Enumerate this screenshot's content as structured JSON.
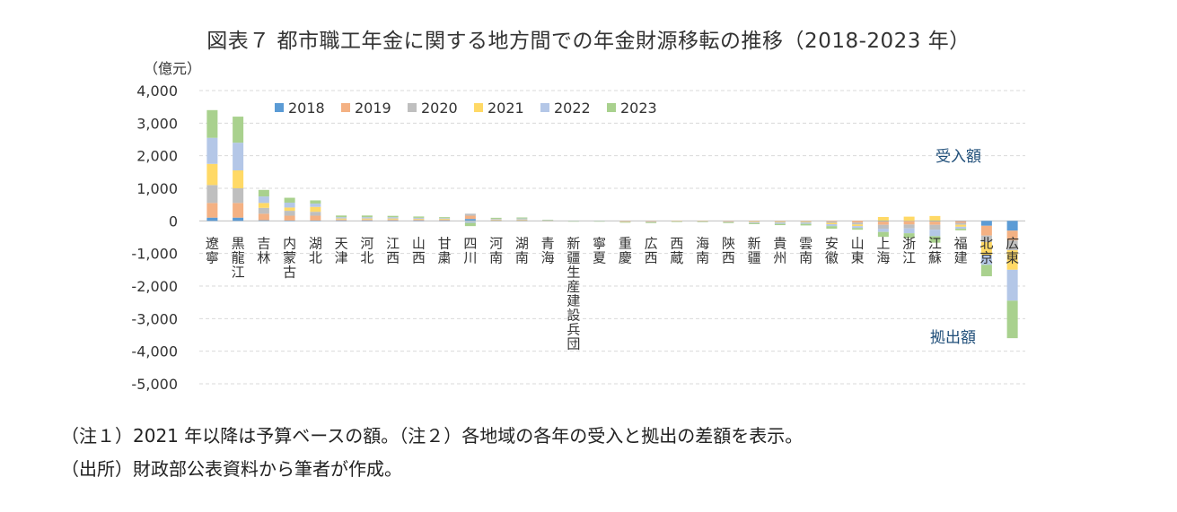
{
  "title": "図表７ 都市職工年金に関する地方間での年金財源移転の推移（2018‐2023 年）",
  "notes": {
    "line1": "（注１）2021 年以降は予算ベースの額。（注２）各地域の各年の受入と拠出の差額を表示。",
    "line2": "（出所）財政部公表資料から筆者が作成。"
  },
  "chart_data": {
    "type": "bar",
    "stacked": true,
    "unit_label": "（億元）",
    "ylim": [
      -5000,
      4000
    ],
    "yticks": [
      4000,
      3000,
      2000,
      1000,
      0,
      -1000,
      -2000,
      -3000,
      -4000,
      -5000
    ],
    "ytick_labels": [
      "4,000",
      "3,000",
      "2,000",
      "1,000",
      "0",
      "-1,000",
      "-2,000",
      "-3,000",
      "-4,000",
      "-5,000"
    ],
    "grid": true,
    "legend_position": "top",
    "annotations": {
      "receive": "受入額",
      "contribute": "拠出額"
    },
    "categories": [
      "遼寧",
      "黒龍江",
      "吉林",
      "内蒙古",
      "湖北",
      "天津",
      "河北",
      "江西",
      "山西",
      "甘粛",
      "四川",
      "河南",
      "湖南",
      "青海",
      "新疆生産建設兵団",
      "寧夏",
      "重慶",
      "広西",
      "西蔵",
      "海南",
      "陝西",
      "新疆",
      "貴州",
      "雲南",
      "安徽",
      "山東",
      "上海",
      "浙江",
      "江蘇",
      "福建",
      "北京",
      "広東"
    ],
    "series": [
      {
        "name": "2018",
        "color": "#5b9bd5",
        "values": [
          100,
          100,
          20,
          10,
          10,
          5,
          5,
          5,
          5,
          5,
          60,
          5,
          5,
          5,
          0,
          0,
          0,
          0,
          0,
          0,
          0,
          0,
          0,
          0,
          0,
          0,
          -20,
          -10,
          -20,
          -10,
          -150,
          -300
        ]
      },
      {
        "name": "2019",
        "color": "#f4b183",
        "values": [
          450,
          450,
          200,
          150,
          150,
          20,
          20,
          20,
          20,
          20,
          100,
          10,
          10,
          5,
          0,
          0,
          -10,
          -10,
          -5,
          -5,
          -10,
          -10,
          -10,
          -10,
          -20,
          -50,
          -100,
          -100,
          -100,
          -50,
          -300,
          -300
        ]
      },
      {
        "name": "2020",
        "color": "#bfbfbf",
        "values": [
          550,
          450,
          180,
          150,
          120,
          20,
          20,
          20,
          20,
          20,
          60,
          10,
          10,
          5,
          -5,
          -5,
          -10,
          -10,
          -5,
          -5,
          -10,
          -10,
          -20,
          -20,
          -40,
          -60,
          -120,
          -120,
          -150,
          -60,
          -200,
          -300
        ]
      },
      {
        "name": "2021",
        "color": "#ffd966",
        "values": [
          650,
          550,
          150,
          100,
          150,
          30,
          30,
          30,
          20,
          20,
          -10,
          20,
          20,
          5,
          0,
          0,
          -10,
          -10,
          -5,
          -5,
          -10,
          -20,
          -20,
          -20,
          -40,
          -50,
          120,
          130,
          150,
          -60,
          -400,
          -600
        ]
      },
      {
        "name": "2022",
        "color": "#b4c7e7",
        "values": [
          800,
          850,
          200,
          150,
          100,
          40,
          40,
          40,
          30,
          20,
          -50,
          20,
          30,
          5,
          -5,
          -5,
          -10,
          -20,
          -5,
          -10,
          -20,
          -30,
          -40,
          -40,
          -60,
          -60,
          -100,
          -150,
          -200,
          -60,
          -300,
          -950
        ]
      },
      {
        "name": "2023",
        "color": "#a9d18e",
        "values": [
          850,
          800,
          200,
          150,
          100,
          50,
          50,
          40,
          40,
          30,
          -100,
          30,
          30,
          5,
          -5,
          -5,
          -15,
          -20,
          -5,
          -10,
          -20,
          -30,
          -40,
          -50,
          -80,
          -50,
          -150,
          -150,
          -200,
          -50,
          -350,
          -1150
        ]
      }
    ]
  }
}
